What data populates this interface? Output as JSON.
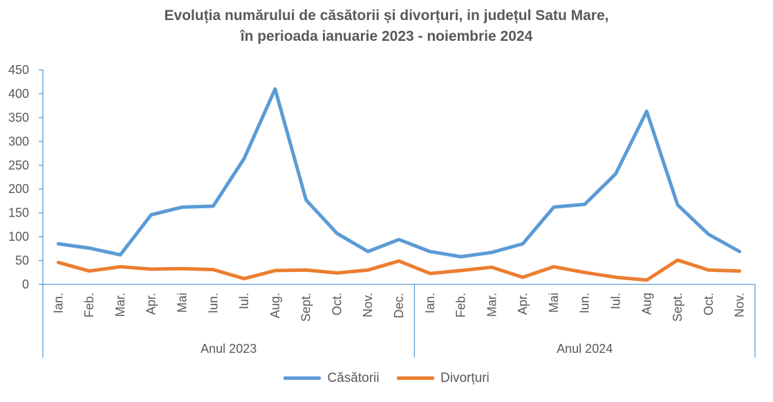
{
  "chart_data": {
    "type": "line",
    "title_line1": "Evoluția numărului de căsătorii și divorțuri, in județul Satu Mare,",
    "title_line2": "în perioada ianuarie 2023 - noiembrie 2024",
    "xlabel": "",
    "ylabel": "",
    "ylim": [
      0,
      450
    ],
    "yticks": [
      "0",
      "50",
      "100",
      "150",
      "200",
      "250",
      "300",
      "350",
      "400",
      "450"
    ],
    "grid": false,
    "legend_position": "bottom",
    "groups": [
      {
        "name": "Anul 2023",
        "categories": [
          "Ian.",
          "Feb.",
          "Mar.",
          "Apr.",
          "Mai",
          "Iun.",
          "Iul.",
          "Aug.",
          "Sept.",
          "Oct.",
          "Nov.",
          "Dec."
        ]
      },
      {
        "name": "Anul 2024",
        "categories": [
          "Ian.",
          "Feb.",
          "Mar.",
          "Apr.",
          "Mai",
          "Iun.",
          "Iul.",
          "Aug",
          "Sept.",
          "Oct.",
          "Nov."
        ]
      }
    ],
    "series": [
      {
        "name": "Căsătorii",
        "color": "#5B9BD5",
        "values": [
          85,
          76,
          62,
          146,
          162,
          164,
          264,
          410,
          177,
          107,
          69,
          94,
          69,
          58,
          67,
          85,
          162,
          168,
          232,
          363,
          167,
          105,
          69
        ]
      },
      {
        "name": "Divorțuri",
        "color": "#ED7D31",
        "values": [
          46,
          28,
          37,
          32,
          33,
          31,
          12,
          29,
          30,
          24,
          30,
          49,
          23,
          29,
          36,
          15,
          37,
          25,
          15,
          9,
          51,
          30,
          28
        ]
      }
    ]
  }
}
